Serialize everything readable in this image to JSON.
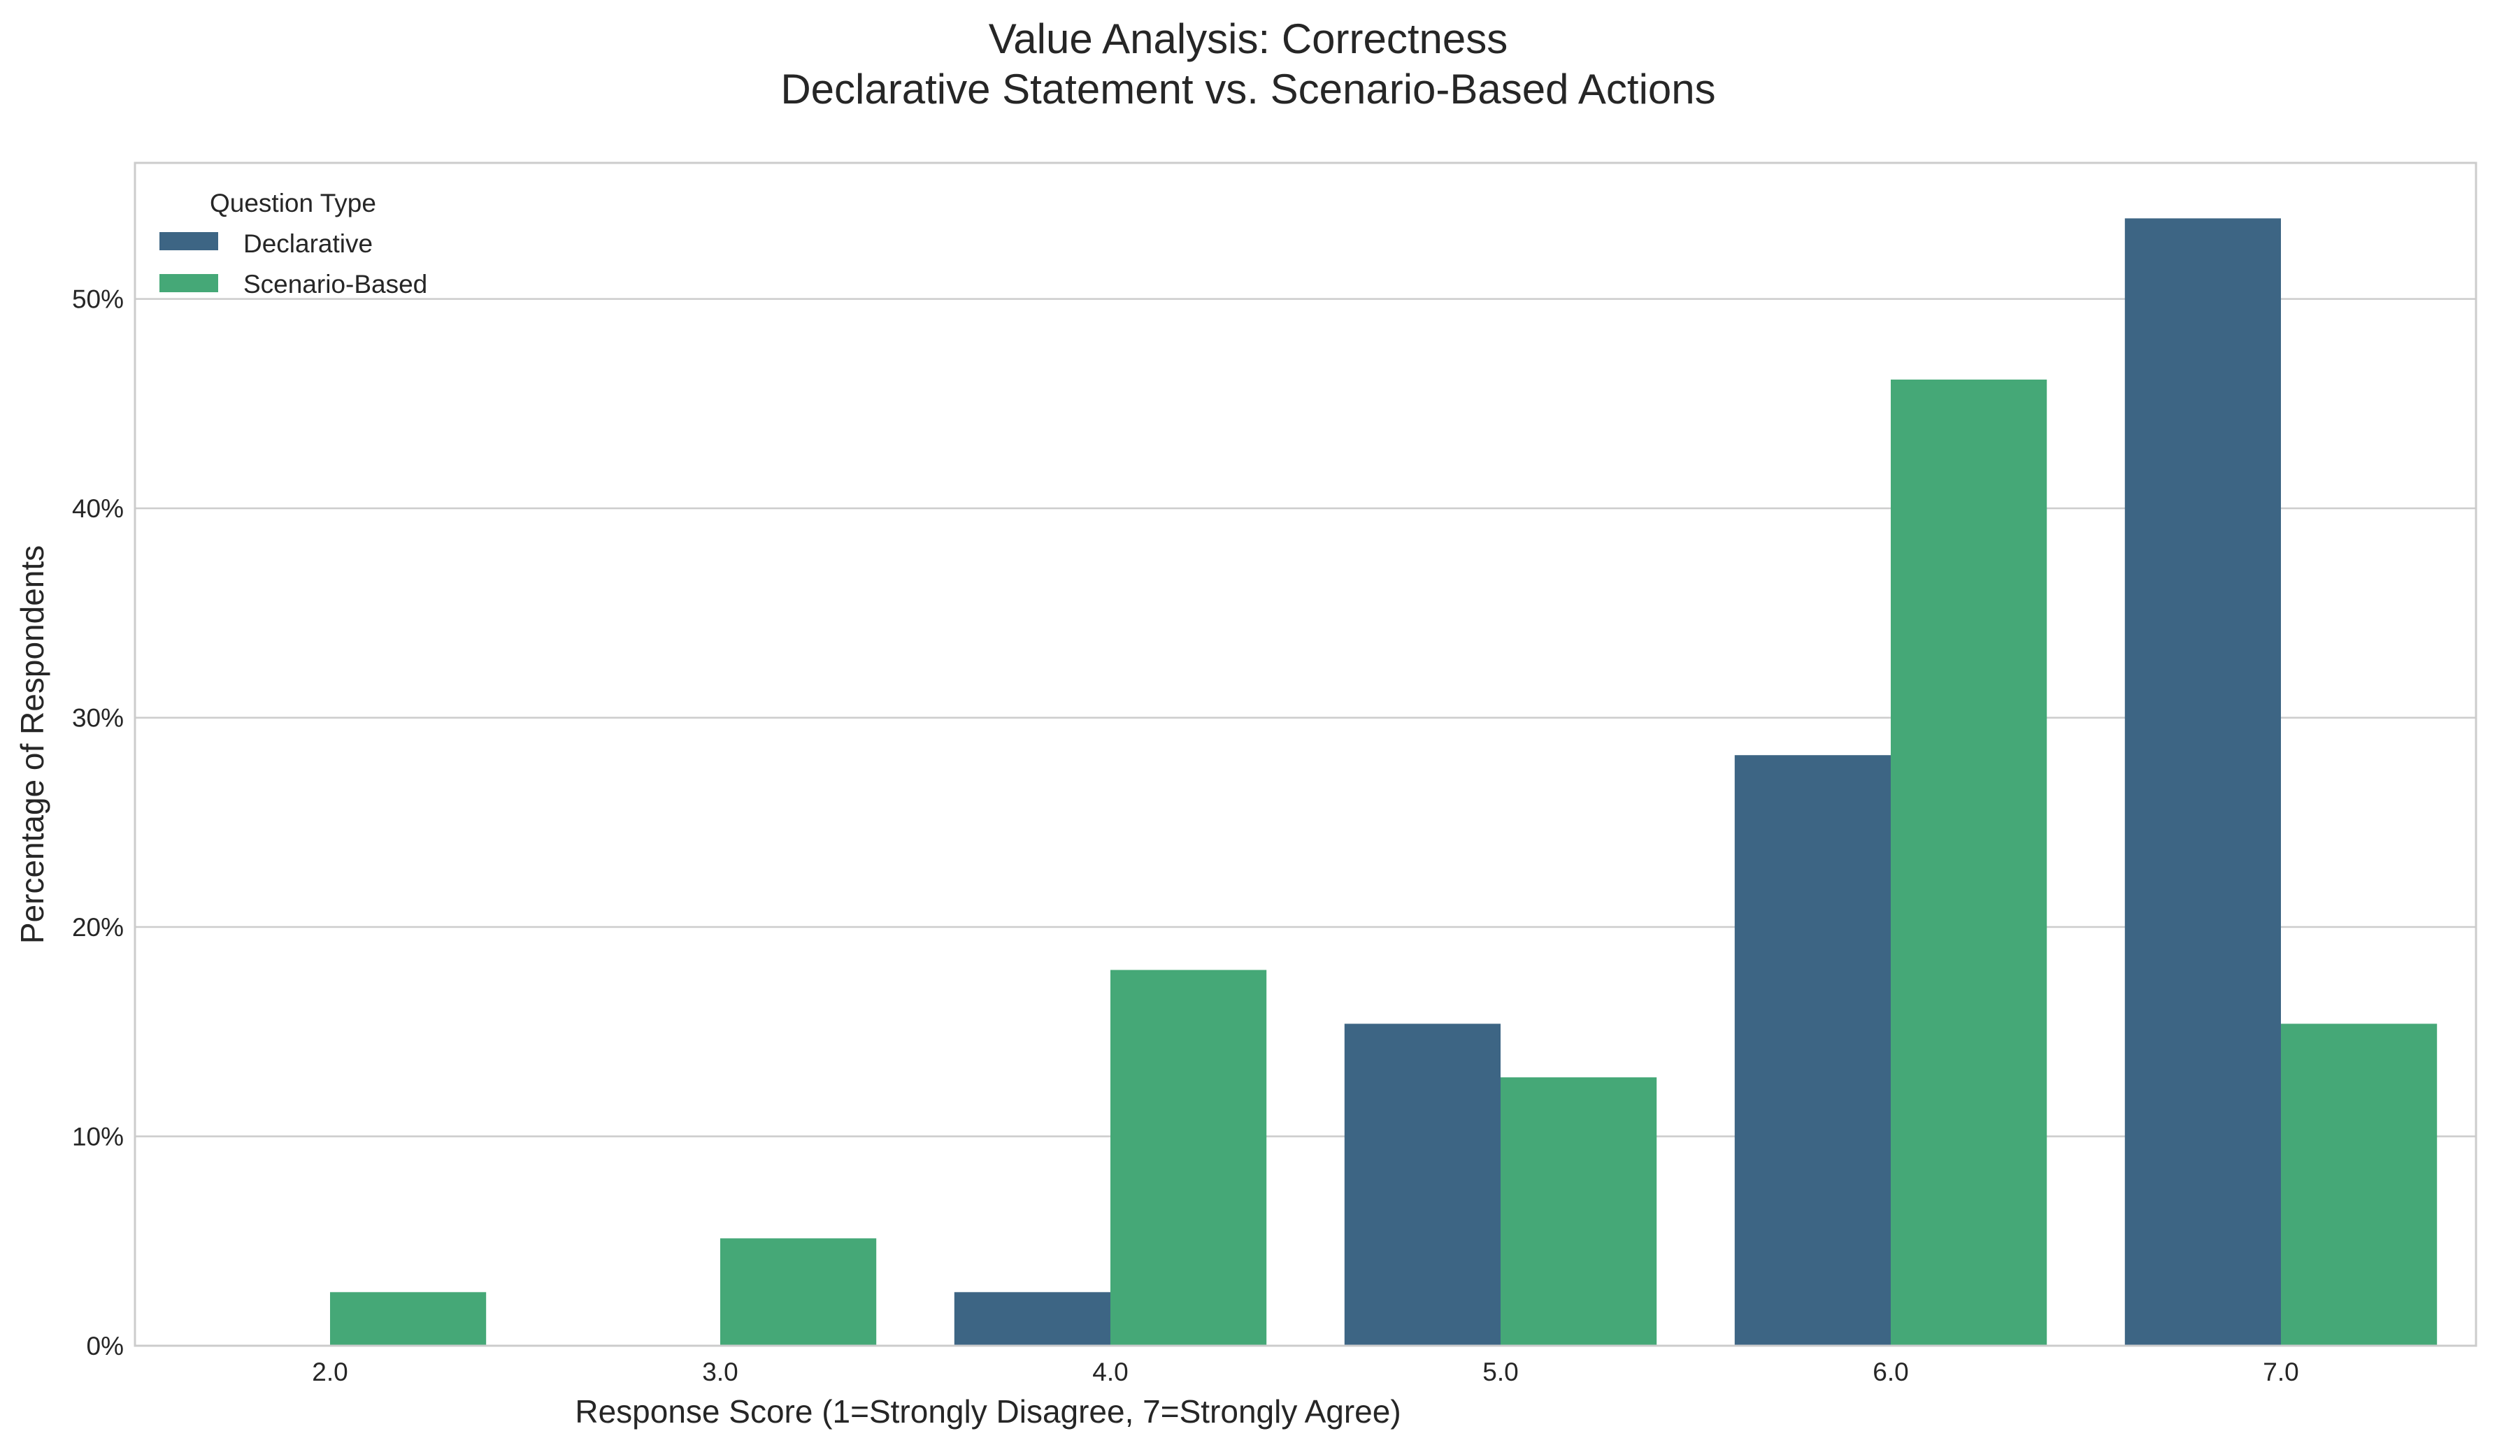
{
  "chart_data": {
    "type": "bar",
    "title_lines": [
      "Value Analysis: Correctness",
      "Declarative Statement vs. Scenario-Based Actions"
    ],
    "xlabel": "Response Score (1=Strongly Disagree, 7=Strongly Agree)",
    "ylabel": "Percentage of Respondents",
    "categories": [
      "2.0",
      "3.0",
      "4.0",
      "5.0",
      "6.0",
      "7.0"
    ],
    "yticks": [
      0,
      10,
      20,
      30,
      40,
      50
    ],
    "ytick_labels": [
      "0%",
      "10%",
      "20%",
      "30%",
      "40%",
      "50%"
    ],
    "ylim": [
      0,
      56.5
    ],
    "grid": "horizontal",
    "legend": {
      "title": "Question Type",
      "placement": "top-left"
    },
    "series": [
      {
        "name": "Declarative",
        "color": "#3d6584",
        "values": [
          0,
          0,
          2.56,
          15.38,
          28.21,
          53.85
        ]
      },
      {
        "name": "Scenario-Based",
        "color": "#45a877",
        "values": [
          2.56,
          5.13,
          17.95,
          12.82,
          46.15,
          15.38
        ]
      }
    ]
  }
}
